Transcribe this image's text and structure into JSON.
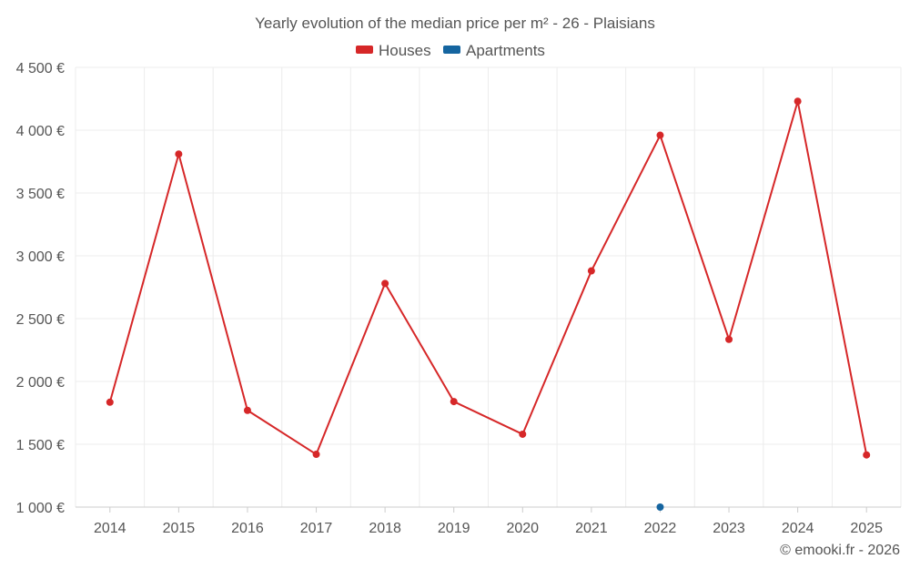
{
  "chart_data": {
    "type": "line",
    "title": "Yearly evolution of the median price per m² - 26 - Plaisians",
    "categories": [
      "2014",
      "2015",
      "2016",
      "2017",
      "2018",
      "2019",
      "2020",
      "2021",
      "2022",
      "2023",
      "2024",
      "2025"
    ],
    "y_tick_labels": [
      "1 000 €",
      "1 500 €",
      "2 000 €",
      "2 500 €",
      "3 000 €",
      "3 500 €",
      "4 000 €",
      "4 500 €"
    ],
    "ylim": [
      1000,
      4500
    ],
    "grid": true,
    "legend_position": "top-center",
    "series": [
      {
        "name": "Houses",
        "color": "#d62728",
        "values": [
          1835,
          3810,
          1770,
          1420,
          2780,
          1840,
          1580,
          2880,
          3960,
          2335,
          4230,
          1415
        ]
      },
      {
        "name": "Apartments",
        "color": "#1565a0",
        "values": [
          null,
          null,
          null,
          null,
          null,
          null,
          null,
          null,
          1000,
          null,
          null,
          null
        ]
      }
    ]
  },
  "credit": "© emooki.fr - 2026"
}
